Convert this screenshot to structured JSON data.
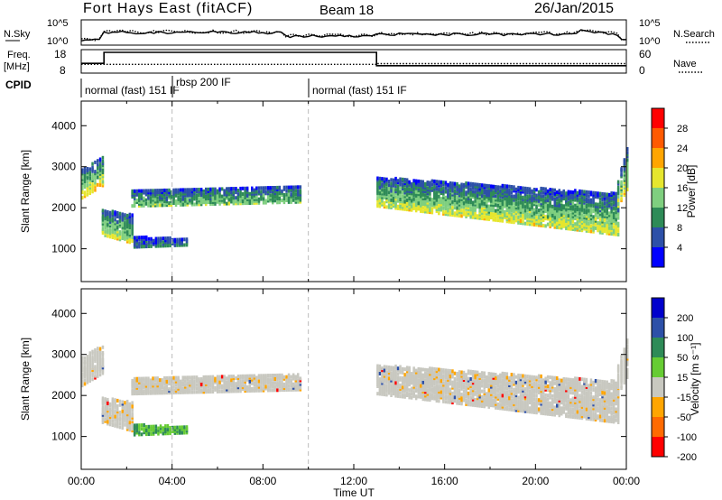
{
  "header": {
    "title": "Fort Hays East (fitACF)",
    "beam": "Beam 18",
    "date": "26/Jan/2015"
  },
  "labels": {
    "nsky": "N.Sky",
    "nsearch": "N.Search",
    "freq": "Freq.",
    "freq_unit": "[MHz]",
    "nave": "Nave",
    "cpid": "CPID"
  },
  "chart_data": [
    {
      "type": "line",
      "panel": "noise",
      "series": [
        {
          "name": "N.Sky",
          "style": "solid"
        },
        {
          "name": "N.Search",
          "style": "dotted"
        }
      ],
      "yticks_left": [
        "10^5",
        "10^0"
      ],
      "yticks_right": [
        "10^5",
        "10^0"
      ]
    },
    {
      "type": "line",
      "panel": "frequency",
      "x": [
        0,
        1.0,
        1.0,
        13.0,
        13.0,
        24
      ],
      "series": [
        {
          "name": "Freq.",
          "style": "solid",
          "values": [
            12,
            12,
            17.5,
            17.5,
            10.8,
            10.8
          ]
        },
        {
          "name": "Nave",
          "style": "dotted",
          "values": [
            21,
            21,
            21,
            21,
            23,
            23
          ]
        }
      ],
      "yticks_left": [
        "18",
        "8"
      ],
      "yticks_right": [
        "60",
        "0"
      ]
    },
    {
      "type": "table",
      "panel": "cpid",
      "segments": [
        {
          "start": 0,
          "label": "normal (fast) 151 IF"
        },
        {
          "start": 4.0,
          "label": "rbsp 200 IF"
        },
        {
          "start": 10.0,
          "label": "normal (fast) 151 IF"
        }
      ]
    },
    {
      "type": "heatmap",
      "panel": "power",
      "xlabel": "",
      "ylabel": "Slant Range [km]",
      "xlim": [
        0,
        24
      ],
      "ylim": [
        200,
        4600
      ],
      "yticks": [
        1000,
        2000,
        3000,
        4000
      ],
      "colorbar": {
        "label": "Power [dB]",
        "ticks": [
          4,
          8,
          12,
          16,
          20,
          24,
          28
        ],
        "colors": [
          "#0000ff",
          "#2d50a8",
          "#2e8b57",
          "#7fcf7f",
          "#e6e62e",
          "#ffa500",
          "#ff5a00",
          "#ff0000"
        ]
      },
      "echo_bands": [
        {
          "t0": 0.0,
          "t1": 0.9,
          "r_bottom": [
            2200,
            2500
          ],
          "r_top": [
            2900,
            3200
          ],
          "level": 20
        },
        {
          "t0": 0.9,
          "t1": 2.2,
          "r_bottom": [
            1300,
            1100
          ],
          "r_top": [
            1900,
            1800
          ],
          "level": 18
        },
        {
          "t0": 2.2,
          "t1": 9.6,
          "r_bottom": [
            2000,
            2100
          ],
          "r_top": [
            2400,
            2500
          ],
          "level": 14
        },
        {
          "t0": 2.3,
          "t1": 4.6,
          "r_bottom": [
            1000,
            1050
          ],
          "r_top": [
            1250,
            1200
          ],
          "level": 8
        },
        {
          "t0": 13.0,
          "t1": 23.6,
          "r_bottom": [
            2000,
            1300
          ],
          "r_top": [
            2700,
            2300
          ],
          "level": 18
        },
        {
          "t0": 23.6,
          "t1": 24.0,
          "r_bottom": [
            2000,
            2400
          ],
          "r_top": [
            2700,
            3400
          ],
          "level": 20
        }
      ]
    },
    {
      "type": "heatmap",
      "panel": "velocity",
      "xlabel": "Time UT",
      "ylabel": "Slant Range [km]",
      "xlim": [
        0,
        24
      ],
      "ylim": [
        200,
        4600
      ],
      "yticks": [
        1000,
        2000,
        3000,
        4000
      ],
      "xtick_labels": [
        "00:00",
        "04:00",
        "08:00",
        "12:00",
        "16:00",
        "20:00",
        "00:00"
      ],
      "xticks": [
        0,
        4,
        8,
        12,
        16,
        20,
        24
      ],
      "colorbar": {
        "label": "Velocity [m s⁻¹]",
        "ticks": [
          200,
          100,
          50,
          15,
          -15,
          -50,
          -100,
          -200
        ],
        "colors": [
          "#0000cc",
          "#2d50a8",
          "#2e8b57",
          "#66cc33",
          "#c8c8c0",
          "#ffa500",
          "#ff6a00",
          "#ff0000"
        ]
      },
      "echo_bands": [
        {
          "t0": 0.0,
          "t1": 0.9,
          "r_bottom": [
            2200,
            2500
          ],
          "r_top": [
            2900,
            3200
          ],
          "level": 0
        },
        {
          "t0": 0.9,
          "t1": 2.2,
          "r_bottom": [
            1300,
            1100
          ],
          "r_top": [
            1900,
            1800
          ],
          "level": 0
        },
        {
          "t0": 2.2,
          "t1": 9.6,
          "r_bottom": [
            2000,
            2100
          ],
          "r_top": [
            2400,
            2500
          ],
          "level": 0
        },
        {
          "t0": 2.3,
          "t1": 4.6,
          "r_bottom": [
            1000,
            1050
          ],
          "r_top": [
            1250,
            1200
          ],
          "level": 30
        },
        {
          "t0": 13.0,
          "t1": 23.6,
          "r_bottom": [
            2000,
            1300
          ],
          "r_top": [
            2700,
            2300
          ],
          "level": 0
        },
        {
          "t0": 23.6,
          "t1": 24.0,
          "r_bottom": [
            2000,
            2400
          ],
          "r_top": [
            2700,
            3400
          ],
          "level": 0
        }
      ]
    }
  ]
}
